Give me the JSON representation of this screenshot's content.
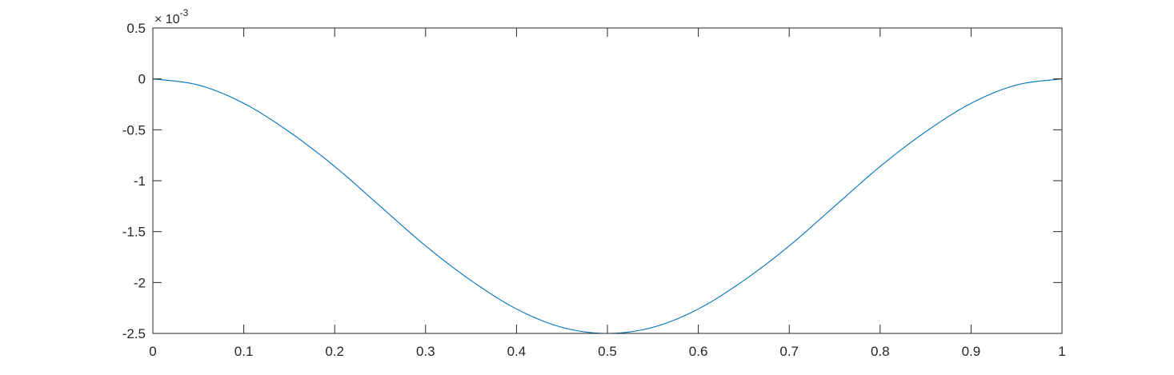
{
  "chart_data": {
    "type": "line",
    "title": "",
    "xlabel": "",
    "ylabel": "",
    "xlim": [
      0,
      1
    ],
    "ylim": [
      -2.5,
      0.5
    ],
    "y_multiplier": "10^-3",
    "y_multiplier_base": "× 10",
    "y_multiplier_exponent": "-3",
    "x_ticks": [
      0,
      0.1,
      0.2,
      0.3,
      0.4,
      0.5,
      0.6,
      0.7,
      0.8,
      0.9,
      1
    ],
    "x_tick_labels": [
      "0",
      "0.1",
      "0.2",
      "0.3",
      "0.4",
      "0.5",
      "0.6",
      "0.7",
      "0.8",
      "0.9",
      "1"
    ],
    "y_ticks": [
      0.5,
      0,
      -0.5,
      -1,
      -1.5,
      -2,
      -2.5
    ],
    "y_tick_labels": [
      "0.5",
      "0",
      "-0.5",
      "-1",
      "-1.5",
      "-2",
      "-2.5"
    ],
    "grid": false,
    "box": true,
    "series": [
      {
        "color": "#0072BD",
        "x": [
          0,
          0.05,
          0.1,
          0.15,
          0.2,
          0.25,
          0.3,
          0.35,
          0.4,
          0.45,
          0.5,
          0.55,
          0.6,
          0.65,
          0.7,
          0.75,
          0.8,
          0.85,
          0.9,
          0.95,
          1
        ],
        "y": [
          0,
          -0.06,
          -0.24,
          -0.52,
          -0.86,
          -1.25,
          -1.64,
          -1.98,
          -2.26,
          -2.44,
          -2.5,
          -2.44,
          -2.26,
          -1.98,
          -1.64,
          -1.25,
          -0.86,
          -0.52,
          -0.24,
          -0.06,
          0
        ]
      }
    ]
  }
}
